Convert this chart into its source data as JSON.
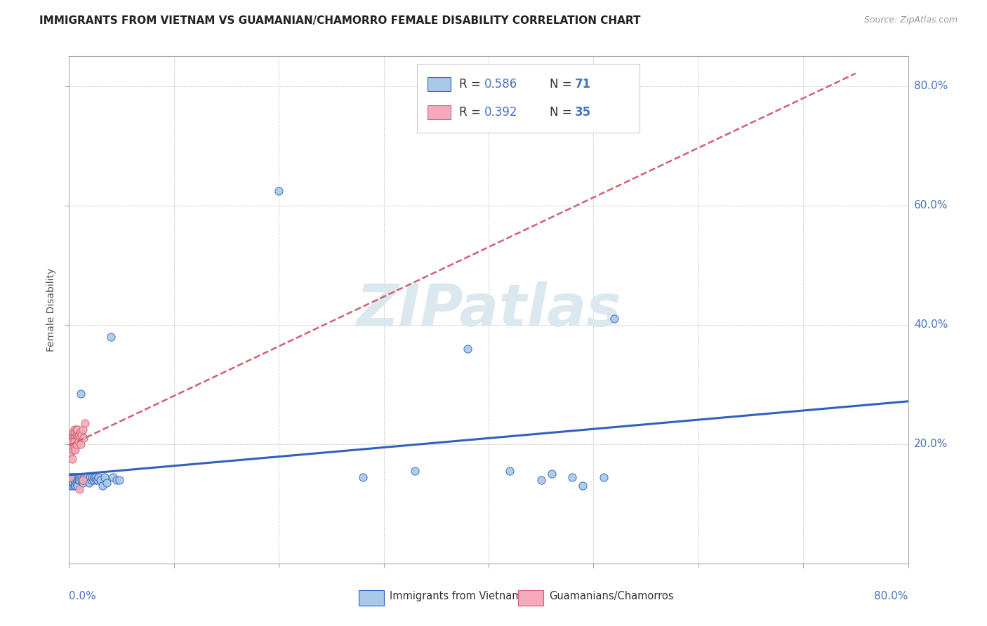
{
  "title": "IMMIGRANTS FROM VIETNAM VS GUAMANIAN/CHAMORRO FEMALE DISABILITY CORRELATION CHART",
  "source": "Source: ZipAtlas.com",
  "ylabel": "Female Disability",
  "color_vietnam": "#A8C8E8",
  "color_guam": "#F4AABB",
  "color_vietnam_line": "#3060C0",
  "color_guam_line": "#D06070",
  "watermark": "ZIPatlas",
  "vietnam_x": [
    0.001,
    0.001,
    0.001,
    0.002,
    0.002,
    0.002,
    0.002,
    0.003,
    0.003,
    0.003,
    0.003,
    0.003,
    0.004,
    0.004,
    0.004,
    0.005,
    0.005,
    0.005,
    0.006,
    0.006,
    0.006,
    0.006,
    0.007,
    0.007,
    0.007,
    0.008,
    0.008,
    0.008,
    0.009,
    0.009,
    0.01,
    0.01,
    0.011,
    0.012,
    0.012,
    0.013,
    0.013,
    0.014,
    0.015,
    0.016,
    0.017,
    0.018,
    0.019,
    0.02,
    0.021,
    0.022,
    0.023,
    0.024,
    0.025,
    0.026,
    0.027,
    0.028,
    0.03,
    0.032,
    0.034,
    0.036,
    0.04,
    0.042,
    0.045,
    0.048,
    0.2,
    0.28,
    0.33,
    0.38,
    0.42,
    0.45,
    0.46,
    0.48,
    0.49,
    0.51,
    0.52
  ],
  "vietnam_y": [
    0.145,
    0.14,
    0.135,
    0.145,
    0.135,
    0.14,
    0.13,
    0.14,
    0.145,
    0.13,
    0.14,
    0.135,
    0.14,
    0.145,
    0.135,
    0.145,
    0.13,
    0.14,
    0.145,
    0.14,
    0.135,
    0.13,
    0.145,
    0.14,
    0.135,
    0.14,
    0.145,
    0.13,
    0.14,
    0.145,
    0.145,
    0.14,
    0.285,
    0.14,
    0.145,
    0.135,
    0.14,
    0.145,
    0.145,
    0.14,
    0.145,
    0.14,
    0.135,
    0.145,
    0.14,
    0.145,
    0.14,
    0.145,
    0.145,
    0.14,
    0.14,
    0.145,
    0.14,
    0.13,
    0.145,
    0.135,
    0.38,
    0.145,
    0.14,
    0.14,
    0.625,
    0.145,
    0.155,
    0.36,
    0.155,
    0.14,
    0.15,
    0.145,
    0.13,
    0.145,
    0.41
  ],
  "guam_x": [
    0.001,
    0.001,
    0.001,
    0.002,
    0.002,
    0.002,
    0.003,
    0.003,
    0.003,
    0.004,
    0.004,
    0.004,
    0.005,
    0.005,
    0.005,
    0.005,
    0.006,
    0.006,
    0.006,
    0.007,
    0.007,
    0.007,
    0.008,
    0.008,
    0.009,
    0.009,
    0.01,
    0.01,
    0.011,
    0.011,
    0.012,
    0.013,
    0.013,
    0.014,
    0.015
  ],
  "guam_y": [
    0.145,
    0.185,
    0.195,
    0.195,
    0.205,
    0.215,
    0.175,
    0.205,
    0.215,
    0.19,
    0.215,
    0.22,
    0.195,
    0.215,
    0.205,
    0.225,
    0.19,
    0.215,
    0.22,
    0.2,
    0.215,
    0.225,
    0.215,
    0.225,
    0.205,
    0.215,
    0.215,
    0.125,
    0.2,
    0.22,
    0.215,
    0.225,
    0.14,
    0.21,
    0.235
  ],
  "xmin": 0.0,
  "xmax": 0.8,
  "ymin": 0.0,
  "ymax": 0.85,
  "yticks": [
    0.2,
    0.4,
    0.6,
    0.8
  ],
  "ytick_labels": [
    "20.0%",
    "40.0%",
    "60.0%",
    "80.0%"
  ],
  "xtick_left": "0.0%",
  "xtick_right": "80.0%"
}
